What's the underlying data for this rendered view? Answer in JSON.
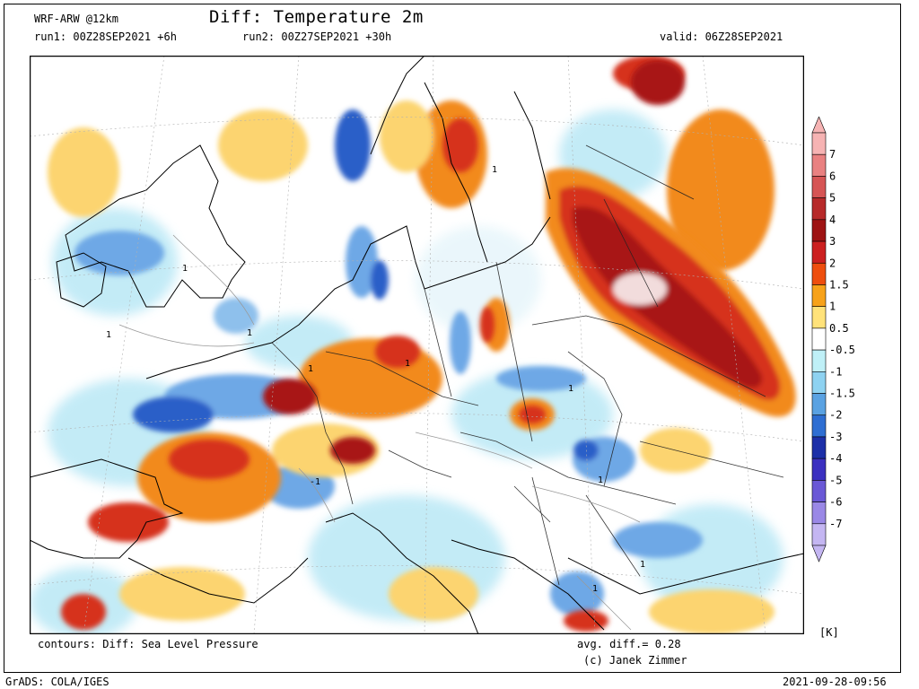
{
  "header": {
    "model": "WRF-ARW @12km",
    "title": "Diff: Temperature 2m",
    "run1": "run1: 00Z28SEP2021 +6h",
    "run2": "run2: 00Z27SEP2021 +30h",
    "valid": "valid: 06Z28SEP2021"
  },
  "footer": {
    "contours": "contours: Diff: Sea Level Pressure",
    "avg_diff": "avg. diff.= 0.28",
    "credit": "(c) Janek Zimmer",
    "software": "GrADS: COLA/IGES",
    "timestamp": "2021-09-28-09:56"
  },
  "colorbar": {
    "unit": "[K]",
    "labels": [
      "7",
      "6",
      "5",
      "4",
      "3",
      "2",
      "1.5",
      "1",
      "0.5",
      "-0.5",
      "-1",
      "-1.5",
      "-2",
      "-3",
      "-4",
      "-5",
      "-6",
      "-7"
    ],
    "colors": [
      "#f6b3b3",
      "#e98181",
      "#d65555",
      "#b72a2a",
      "#9e1313",
      "#cc2020",
      "#ee4e0e",
      "#f7a21a",
      "#ffe27a",
      "#ffffff",
      "#bff0f7",
      "#8ed2f1",
      "#5aa2e2",
      "#2e6ed2",
      "#1c2fa8",
      "#3b30c0",
      "#6a58d6",
      "#9a88e6",
      "#c4b6f2"
    ]
  },
  "map": {
    "region": "Europe",
    "background": "#ffffff",
    "contour_labels": [
      "1",
      "1",
      "1",
      "1",
      "1",
      "1",
      "1",
      "1",
      "1",
      "-1",
      "1"
    ],
    "palette": {
      "dark_red": "#a81818",
      "red": "#d6301a",
      "orange": "#f28a1e",
      "yellow": "#fcd470",
      "light_blue": "#bde9f6",
      "blue": "#6ea8e6",
      "dark_blue": "#2c5ec8"
    }
  }
}
